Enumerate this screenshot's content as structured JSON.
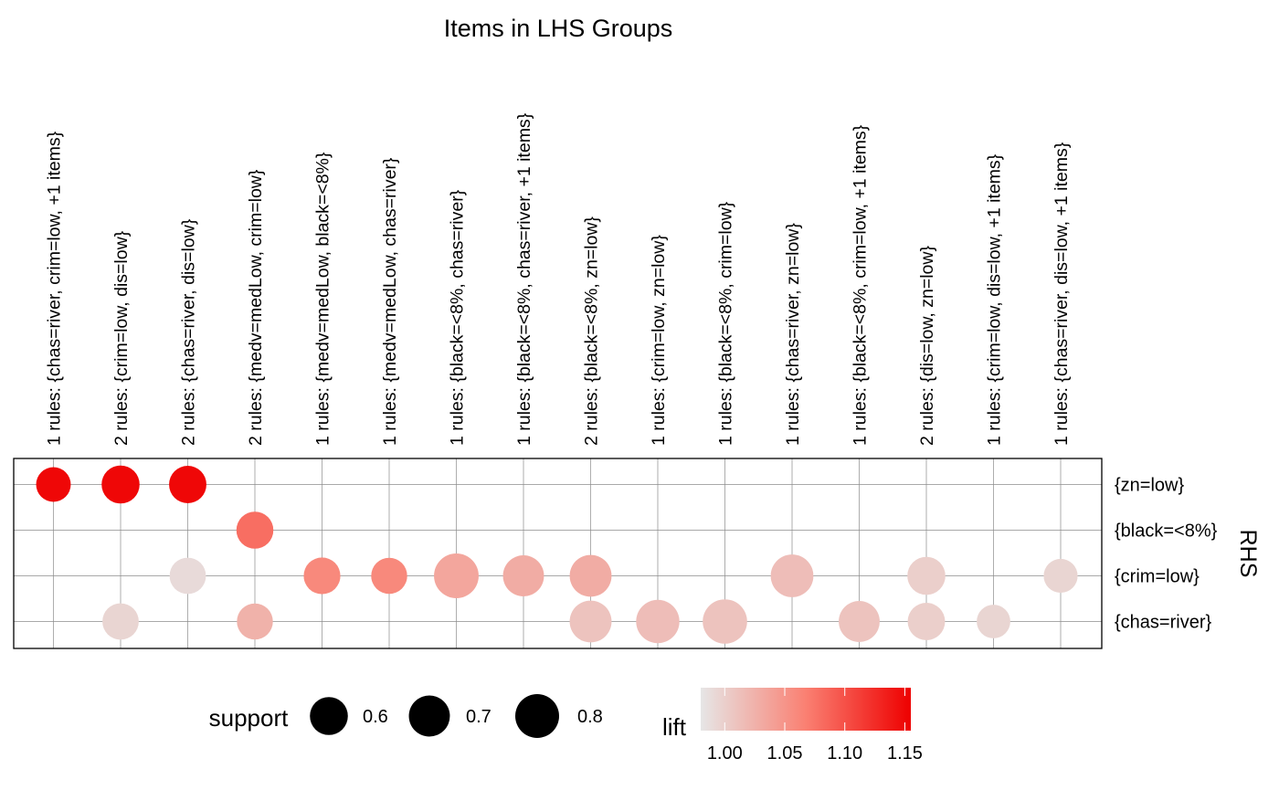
{
  "chart_data": {
    "type": "scatter",
    "title": "Items in LHS Groups",
    "ylabel": "RHS",
    "x_categories": [
      "1 rules: {chas=river, crim=low, +1 items}",
      "2 rules: {crim=low, dis=low}",
      "2 rules: {chas=river, dis=low}",
      "2 rules: {medv=medLow, crim=low}",
      "1 rules: {medv=medLow, black=<8%}",
      "1 rules: {medv=medLow, chas=river}",
      "1 rules: {black=<8%, chas=river}",
      "1 rules: {black=<8%, chas=river, +1 items}",
      "2 rules: {black=<8%, zn=low}",
      "1 rules: {crim=low, zn=low}",
      "1 rules: {black=<8%, crim=low}",
      "1 rules: {chas=river, zn=low}",
      "1 rules: {black=<8%, crim=low, +1 items}",
      "2 rules: {dis=low, zn=low}",
      "1 rules: {crim=low, dis=low, +1 items}",
      "1 rules: {chas=river, dis=low, +1 items}"
    ],
    "y_categories": [
      "{zn=low}",
      "{black=<8%}",
      "{crim=low}",
      "{chas=river}"
    ],
    "points": [
      {
        "x": 0,
        "y": 0,
        "support": 0.5,
        "lift": 1.15
      },
      {
        "x": 1,
        "y": 0,
        "support": 0.6,
        "lift": 1.15
      },
      {
        "x": 2,
        "y": 0,
        "support": 0.58,
        "lift": 1.15
      },
      {
        "x": 3,
        "y": 1,
        "support": 0.57,
        "lift": 1.08
      },
      {
        "x": 2,
        "y": 2,
        "support": 0.55,
        "lift": 0.99
      },
      {
        "x": 4,
        "y": 2,
        "support": 0.56,
        "lift": 1.06
      },
      {
        "x": 5,
        "y": 2,
        "support": 0.54,
        "lift": 1.06
      },
      {
        "x": 6,
        "y": 2,
        "support": 0.83,
        "lift": 1.035
      },
      {
        "x": 7,
        "y": 2,
        "support": 0.7,
        "lift": 1.03
      },
      {
        "x": 8,
        "y": 2,
        "support": 0.73,
        "lift": 1.03
      },
      {
        "x": 11,
        "y": 2,
        "support": 0.76,
        "lift": 1.015
      },
      {
        "x": 13,
        "y": 2,
        "support": 0.6,
        "lift": 1.0
      },
      {
        "x": 15,
        "y": 2,
        "support": 0.48,
        "lift": 0.995
      },
      {
        "x": 1,
        "y": 3,
        "support": 0.55,
        "lift": 0.995
      },
      {
        "x": 3,
        "y": 3,
        "support": 0.54,
        "lift": 1.025
      },
      {
        "x": 8,
        "y": 3,
        "support": 0.73,
        "lift": 1.01
      },
      {
        "x": 9,
        "y": 3,
        "support": 0.78,
        "lift": 1.015
      },
      {
        "x": 10,
        "y": 3,
        "support": 0.82,
        "lift": 1.01
      },
      {
        "x": 12,
        "y": 3,
        "support": 0.7,
        "lift": 1.01
      },
      {
        "x": 13,
        "y": 3,
        "support": 0.58,
        "lift": 1.0
      },
      {
        "x": 14,
        "y": 3,
        "support": 0.47,
        "lift": 0.995
      }
    ],
    "size_legend": {
      "title": "support",
      "values": [
        0.6,
        0.7,
        0.8
      ],
      "labels": [
        "0.6",
        "0.7",
        "0.8"
      ]
    },
    "color_legend": {
      "title": "lift",
      "range": [
        0.98,
        1.155
      ],
      "breaks": [
        1.0,
        1.05,
        1.1,
        1.15
      ],
      "labels": [
        "1.00",
        "1.05",
        "1.10",
        "1.15"
      ],
      "low_color": "#e6e6e6",
      "mid_color": "#fa8072",
      "high_color": "#ee0000"
    },
    "grid": true,
    "legend_position": "bottom"
  }
}
